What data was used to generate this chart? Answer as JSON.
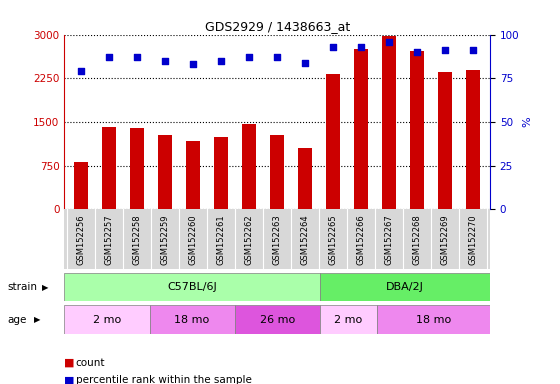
{
  "title": "GDS2929 / 1438663_at",
  "samples": [
    "GSM152256",
    "GSM152257",
    "GSM152258",
    "GSM152259",
    "GSM152260",
    "GSM152261",
    "GSM152262",
    "GSM152263",
    "GSM152264",
    "GSM152265",
    "GSM152266",
    "GSM152267",
    "GSM152268",
    "GSM152269",
    "GSM152270"
  ],
  "counts": [
    820,
    1420,
    1390,
    1270,
    1170,
    1240,
    1460,
    1280,
    1050,
    2320,
    2760,
    2980,
    2720,
    2350,
    2390
  ],
  "percentile": [
    79,
    87,
    87,
    85,
    83,
    85,
    87,
    87,
    84,
    93,
    93,
    96,
    90,
    91,
    91
  ],
  "ylim_left": [
    0,
    3000
  ],
  "ylim_right": [
    0,
    100
  ],
  "yticks_left": [
    0,
    750,
    1500,
    2250,
    3000
  ],
  "yticks_right": [
    0,
    25,
    50,
    75,
    100
  ],
  "bar_color": "#cc0000",
  "dot_color": "#0000cc",
  "strain_groups": [
    {
      "label": "C57BL/6J",
      "start": 0,
      "end": 9,
      "color": "#aaffaa"
    },
    {
      "label": "DBA/2J",
      "start": 9,
      "end": 15,
      "color": "#66ee66"
    }
  ],
  "age_groups": [
    {
      "label": "2 mo",
      "start": 0,
      "end": 3,
      "color": "#ffccff"
    },
    {
      "label": "18 mo",
      "start": 3,
      "end": 6,
      "color": "#ee88ee"
    },
    {
      "label": "26 mo",
      "start": 6,
      "end": 9,
      "color": "#dd55dd"
    },
    {
      "label": "2 mo",
      "start": 9,
      "end": 11,
      "color": "#ffccff"
    },
    {
      "label": "18 mo",
      "start": 11,
      "end": 15,
      "color": "#ee88ee"
    }
  ],
  "legend_count_label": "count",
  "legend_pct_label": "percentile rank within the sample",
  "strain_label": "strain",
  "age_label": "age",
  "background_color": "#ffffff",
  "plot_bg_color": "#ffffff",
  "xtick_bg_color": "#d8d8d8"
}
